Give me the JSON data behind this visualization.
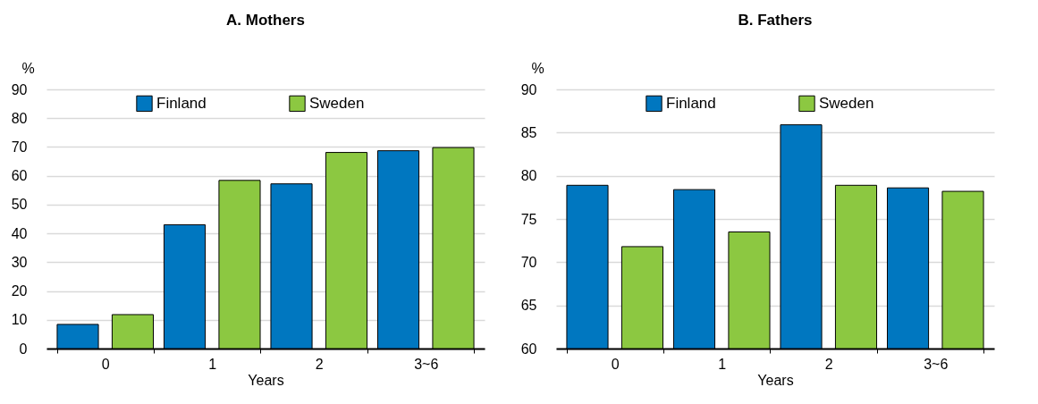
{
  "chart_data": [
    {
      "type": "bar",
      "title": "A. Mothers",
      "xlabel": "Years",
      "ylabel": "%",
      "categories": [
        "0",
        "1",
        "2",
        "3~6"
      ],
      "series": [
        {
          "name": "Finland",
          "color": "#0077c0",
          "values": [
            8.4,
            43,
            57.2,
            68.7
          ]
        },
        {
          "name": "Sweden",
          "color": "#8cc841",
          "values": [
            11.8,
            58.4,
            68.1,
            69.8
          ]
        }
      ],
      "ylim": [
        0,
        90
      ],
      "yticks": [
        0,
        10,
        20,
        30,
        40,
        50,
        60,
        70,
        80,
        90
      ],
      "grid": "y",
      "legend": "top"
    },
    {
      "type": "bar",
      "title": "B. Fathers",
      "xlabel": "Years",
      "ylabel": "%",
      "categories": [
        "0",
        "1",
        "2",
        "3~6"
      ],
      "series": [
        {
          "name": "Finland",
          "color": "#0077c0",
          "values": [
            78.9,
            78.4,
            85.9,
            78.6
          ]
        },
        {
          "name": "Sweden",
          "color": "#8cc841",
          "values": [
            71.8,
            73.5,
            78.9,
            78.2
          ]
        }
      ],
      "ylim": [
        60,
        90
      ],
      "yticks": [
        60,
        65,
        70,
        75,
        80,
        85,
        90
      ],
      "grid": "y",
      "legend": "top"
    }
  ]
}
